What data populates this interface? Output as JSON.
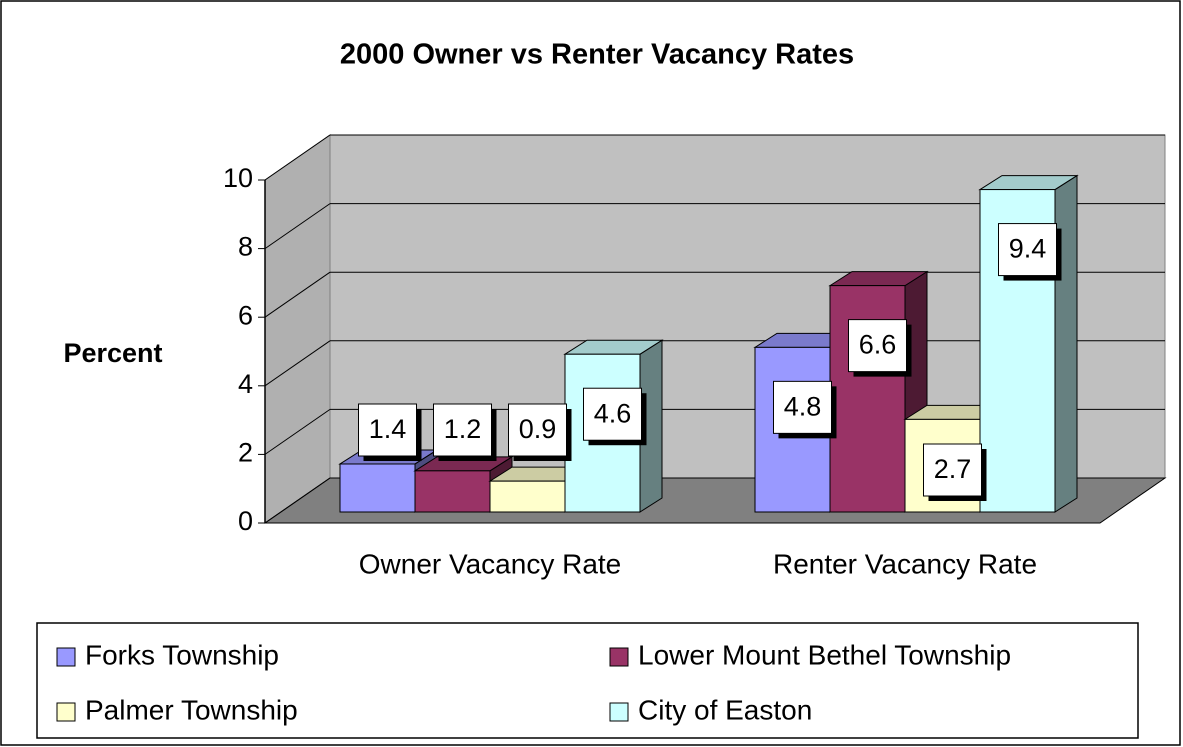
{
  "chart_data": {
    "type": "bar3d",
    "title": "2000 Owner vs Renter Vacancy Rates",
    "y_label": "Percent",
    "categories": [
      "Owner Vacancy Rate",
      "Renter Vacancy Rate"
    ],
    "series": [
      {
        "name": "Forks Township",
        "color": "#9999ff",
        "values": [
          1.4,
          4.8
        ]
      },
      {
        "name": "Lower Mount Bethel Township",
        "color": "#993366",
        "values": [
          1.2,
          6.6
        ]
      },
      {
        "name": "Palmer Township",
        "color": "#ffffcc",
        "values": [
          0.9,
          2.7
        ]
      },
      {
        "name": "City of Easton",
        "color": "#ccffff",
        "values": [
          4.6,
          9.4
        ]
      }
    ],
    "ylim": [
      0,
      10
    ],
    "yticks": [
      0,
      2,
      4,
      6,
      8,
      10
    ],
    "grid": true,
    "legend": "bottom"
  }
}
